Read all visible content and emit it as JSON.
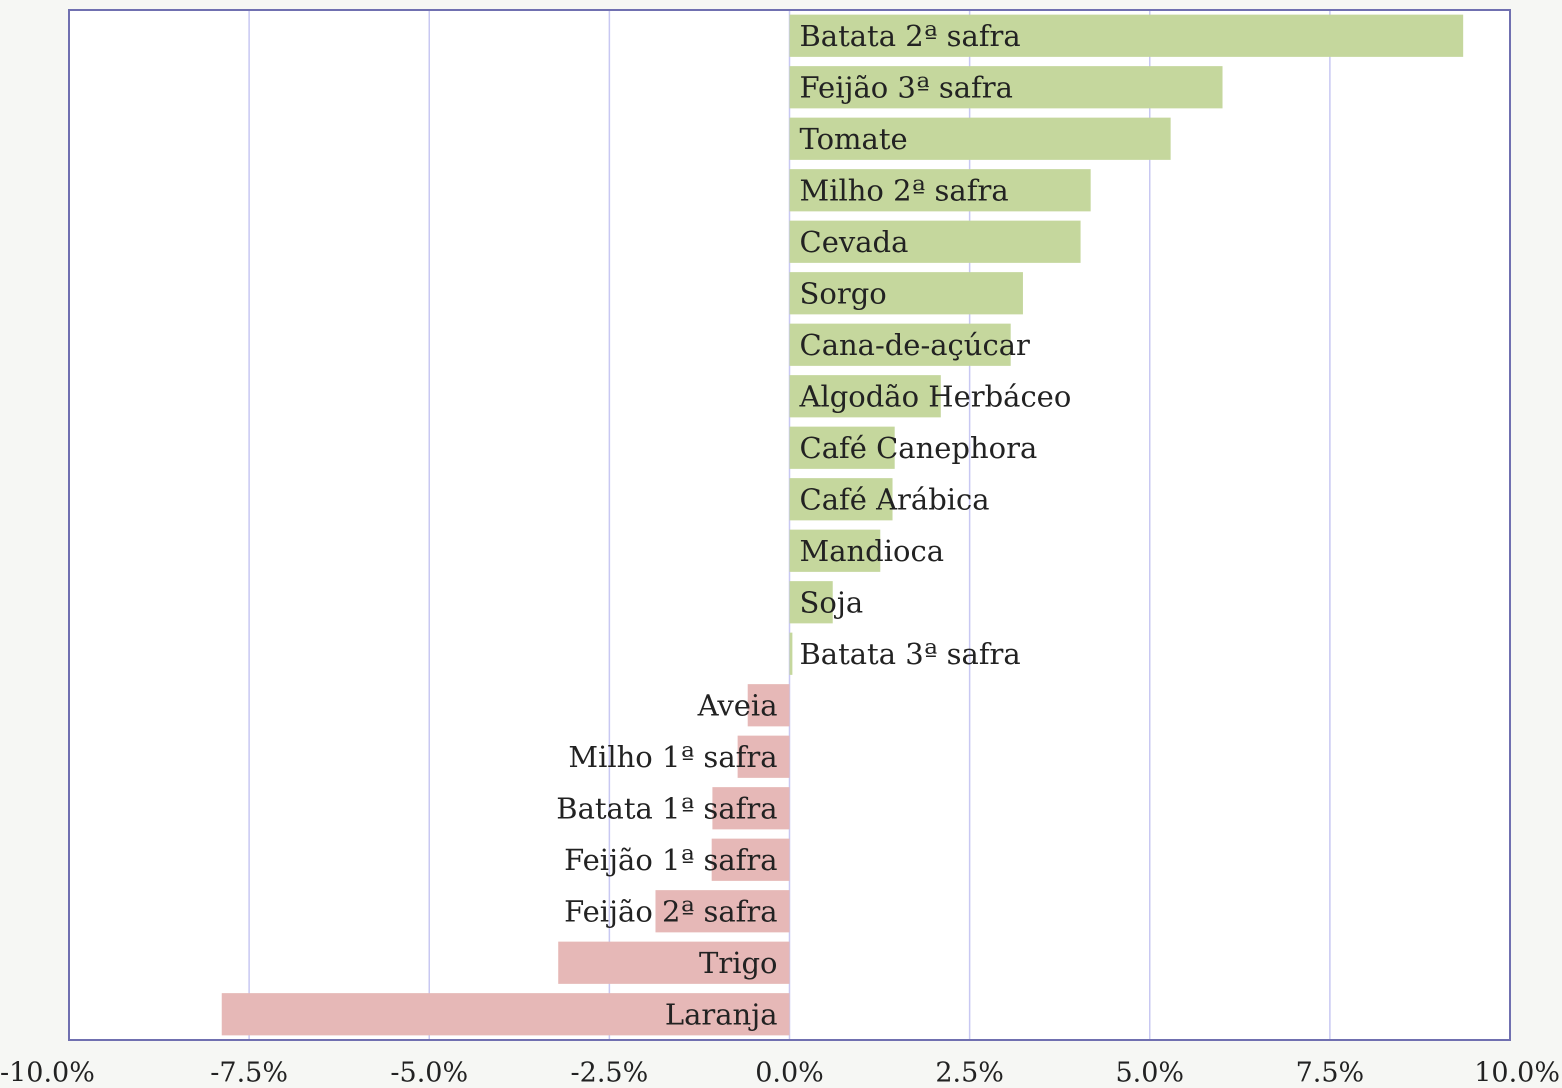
{
  "chart_data": {
    "type": "barh",
    "categories": [
      "Batata 2ª safra",
      "Feijão 3ª safra",
      "Tomate",
      "Milho 2ª safra",
      "Cevada",
      "Sorgo",
      "Cana-de-açúcar",
      "Algodão Herbáceo",
      "Café Canephora",
      "Café Arábica",
      "Mandioca",
      "Soja",
      "Batata 3ª safra",
      "Aveia",
      "Milho 1ª safra",
      "Batata 1ª safra",
      "Feijão 1ª safra",
      "Feijão 2ª safra",
      "Trigo",
      "Laranja"
    ],
    "values": [
      9.35,
      6.01,
      5.29,
      4.18,
      4.04,
      3.24,
      3.07,
      2.1,
      1.46,
      1.43,
      1.26,
      0.6,
      0.04,
      -0.58,
      -0.72,
      -1.07,
      -1.08,
      -1.86,
      -3.21,
      -7.88
    ],
    "colors": [
      "#c5d79d",
      "#c5d79d",
      "#c5d79d",
      "#c5d79d",
      "#c5d79d",
      "#c5d79d",
      "#c5d79d",
      "#c5d79d",
      "#c5d79d",
      "#c5d79d",
      "#c5d79d",
      "#c5d79d",
      "#c5d79d",
      "#e6b8b7",
      "#e6b8b7",
      "#e6b8b7",
      "#e6b8b7",
      "#e6b8b7",
      "#e6b8b7",
      "#e6b8b7"
    ],
    "xlim": [
      -10,
      10
    ],
    "xticks": [
      {
        "value": -10,
        "label": "-10.0%"
      },
      {
        "value": -7.5,
        "label": "-7.5%"
      },
      {
        "value": -5,
        "label": "-5.0%"
      },
      {
        "value": -2.5,
        "label": "-2.5%"
      },
      {
        "value": 0,
        "label": "0.0%"
      },
      {
        "value": 2.5,
        "label": "2.5%"
      },
      {
        "value": 5,
        "label": "5.0%"
      },
      {
        "value": 7.5,
        "label": "7.5%"
      },
      {
        "value": 10,
        "label": "10.0%"
      }
    ],
    "grid": true
  }
}
